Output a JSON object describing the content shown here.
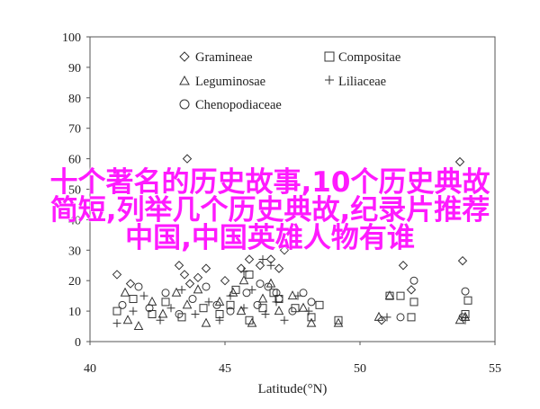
{
  "chart_data": {
    "type": "scatter",
    "title": "",
    "xlabel": "Latitude(°N)",
    "ylabel": "",
    "xlim": [
      40,
      55
    ],
    "ylim": [
      0,
      100
    ],
    "xticks": [
      40,
      45,
      50,
      55
    ],
    "yticks": [
      0,
      10,
      20,
      30,
      40,
      50,
      60,
      70,
      80,
      90,
      100
    ],
    "legend_position": "top-center",
    "series": [
      {
        "name": "Gramineae",
        "marker": "diamond",
        "points": [
          [
            43.3,
            25
          ],
          [
            43.5,
            22
          ],
          [
            43.7,
            19
          ],
          [
            44.0,
            21
          ],
          [
            44.3,
            24
          ],
          [
            45.0,
            20
          ],
          [
            45.6,
            24
          ],
          [
            45.9,
            27
          ],
          [
            46.3,
            25
          ],
          [
            46.7,
            27
          ],
          [
            47.0,
            24
          ],
          [
            47.2,
            30
          ],
          [
            43.6,
            60
          ],
          [
            50.8,
            7
          ],
          [
            51.6,
            25
          ],
          [
            51.9,
            17
          ],
          [
            53.7,
            59
          ],
          [
            53.8,
            26.5
          ],
          [
            41.0,
            22
          ],
          [
            41.5,
            19
          ]
        ]
      },
      {
        "name": "Compositae",
        "marker": "square",
        "points": [
          [
            41.0,
            10
          ],
          [
            41.6,
            14
          ],
          [
            42.3,
            9
          ],
          [
            42.8,
            13
          ],
          [
            43.4,
            8
          ],
          [
            44.2,
            11
          ],
          [
            44.8,
            9
          ],
          [
            45.2,
            12
          ],
          [
            45.9,
            7
          ],
          [
            46.4,
            11
          ],
          [
            47.0,
            14
          ],
          [
            47.6,
            11
          ],
          [
            48.2,
            8
          ],
          [
            48.5,
            12
          ],
          [
            49.2,
            7
          ],
          [
            51.1,
            15
          ],
          [
            51.5,
            15
          ],
          [
            51.9,
            8
          ],
          [
            52.0,
            13
          ],
          [
            53.9,
            9
          ],
          [
            54.0,
            13.5
          ],
          [
            45.9,
            22
          ],
          [
            45.4,
            17
          ],
          [
            46.8,
            16
          ]
        ]
      },
      {
        "name": "Leguminosae",
        "marker": "triangle",
        "points": [
          [
            41.3,
            16
          ],
          [
            41.4,
            7
          ],
          [
            41.8,
            5
          ],
          [
            42.3,
            13
          ],
          [
            42.7,
            9
          ],
          [
            43.2,
            16
          ],
          [
            43.6,
            12
          ],
          [
            44.0,
            17
          ],
          [
            44.3,
            6
          ],
          [
            44.8,
            13
          ],
          [
            45.3,
            16
          ],
          [
            45.6,
            10
          ],
          [
            46.0,
            6
          ],
          [
            46.4,
            14
          ],
          [
            46.7,
            19
          ],
          [
            47.0,
            10
          ],
          [
            47.5,
            15
          ],
          [
            47.9,
            11
          ],
          [
            48.2,
            6
          ],
          [
            45.7,
            20
          ],
          [
            49.2,
            6
          ],
          [
            50.7,
            8
          ],
          [
            51.1,
            15
          ],
          [
            53.7,
            7
          ],
          [
            53.9,
            8
          ]
        ]
      },
      {
        "name": "Liliaceae",
        "marker": "plus",
        "points": [
          [
            41.0,
            6
          ],
          [
            41.6,
            10
          ],
          [
            42.0,
            15
          ],
          [
            42.6,
            7
          ],
          [
            43.0,
            11
          ],
          [
            43.4,
            17
          ],
          [
            43.9,
            9
          ],
          [
            44.4,
            13
          ],
          [
            44.8,
            7
          ],
          [
            45.2,
            15
          ],
          [
            45.7,
            11
          ],
          [
            46.0,
            17
          ],
          [
            46.5,
            9
          ],
          [
            46.9,
            13
          ],
          [
            47.2,
            7
          ],
          [
            47.7,
            15
          ],
          [
            48.1,
            10
          ],
          [
            45.7,
            23
          ],
          [
            46.4,
            27
          ],
          [
            46.7,
            25
          ],
          [
            51.0,
            8
          ],
          [
            53.9,
            7
          ]
        ]
      },
      {
        "name": "Chenopodiaceae",
        "marker": "circle",
        "points": [
          [
            41.2,
            12
          ],
          [
            41.8,
            18
          ],
          [
            42.2,
            11
          ],
          [
            42.8,
            16
          ],
          [
            43.3,
            9
          ],
          [
            43.8,
            14
          ],
          [
            44.3,
            18
          ],
          [
            44.7,
            12
          ],
          [
            45.2,
            10
          ],
          [
            45.8,
            16
          ],
          [
            46.2,
            12
          ],
          [
            46.6,
            18
          ],
          [
            47.0,
            14
          ],
          [
            47.5,
            10
          ],
          [
            47.9,
            16
          ],
          [
            48.2,
            13
          ],
          [
            46.3,
            19
          ],
          [
            46.9,
            16
          ],
          [
            51.5,
            8
          ],
          [
            52.0,
            20
          ],
          [
            53.9,
            16.5
          ],
          [
            53.8,
            8
          ]
        ]
      }
    ]
  },
  "overlay": {
    "line1": "十个著名的历史故事,10个历史典故",
    "line2": "简短,列举几个历史典故,纪录片推荐",
    "line3": "中国,中国英雄人物有谁",
    "color": "#ff1aff"
  }
}
